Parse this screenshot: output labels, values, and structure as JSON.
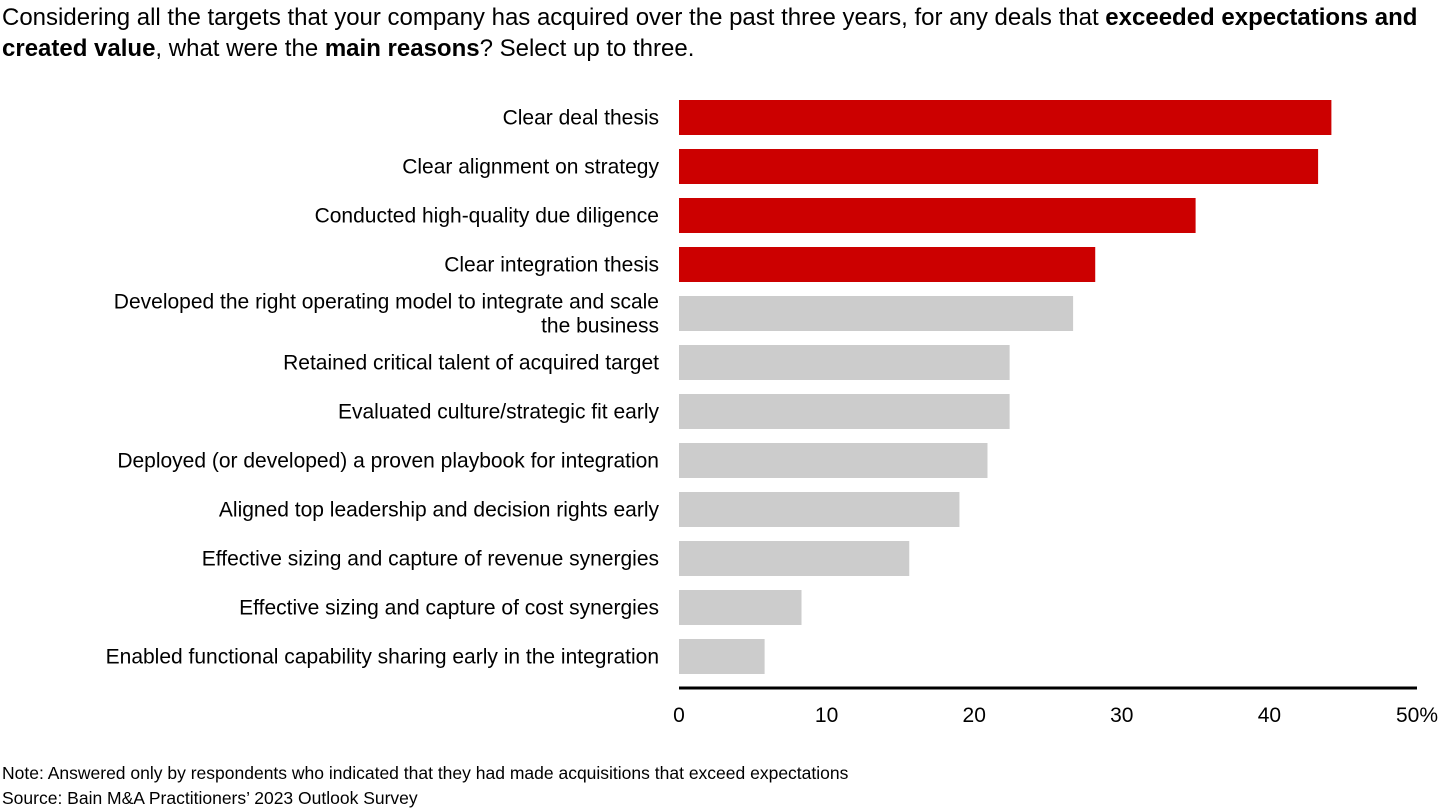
{
  "question": {
    "part1": "Considering all the targets that your company has acquired over the past three years, for any deals that ",
    "bold1": "exceeded expectations and created value",
    "part2": ", what were the ",
    "bold2": "main reasons",
    "part3": "? Select up to three."
  },
  "chart_data": {
    "type": "bar",
    "orientation": "horizontal",
    "categories": [
      [
        "Clear deal thesis"
      ],
      [
        "Clear alignment on strategy"
      ],
      [
        "Conducted high-quality due diligence"
      ],
      [
        "Clear integration thesis"
      ],
      [
        "Developed the right operating model to integrate and scale",
        "the business"
      ],
      [
        "Retained critical talent of acquired target"
      ],
      [
        "Evaluated culture/strategic fit early"
      ],
      [
        "Deployed (or developed) a proven playbook for integration"
      ],
      [
        "Aligned top leadership and decision rights early"
      ],
      [
        "Effective sizing and capture of revenue synergies"
      ],
      [
        "Effective sizing and capture of cost synergies"
      ],
      [
        "Enabled functional capability sharing early in the integration"
      ]
    ],
    "values": [
      44.2,
      43.3,
      35.0,
      28.2,
      26.7,
      22.4,
      22.4,
      20.9,
      19.0,
      15.6,
      8.3,
      5.8
    ],
    "highlight_count": 4,
    "xlim": [
      0,
      50
    ],
    "xticks": [
      "0",
      "10",
      "20",
      "30",
      "40",
      "50%"
    ],
    "grid": false,
    "colors": {
      "highlight": "#cc0000",
      "other": "#cccccc",
      "axis": "#000000"
    }
  },
  "notes": {
    "note": "Note: Answered only by respondents who indicated that they had made acquisitions that exceed expectations",
    "source": "Source: Bain M&A Practitioners’ 2023 Outlook Survey"
  }
}
